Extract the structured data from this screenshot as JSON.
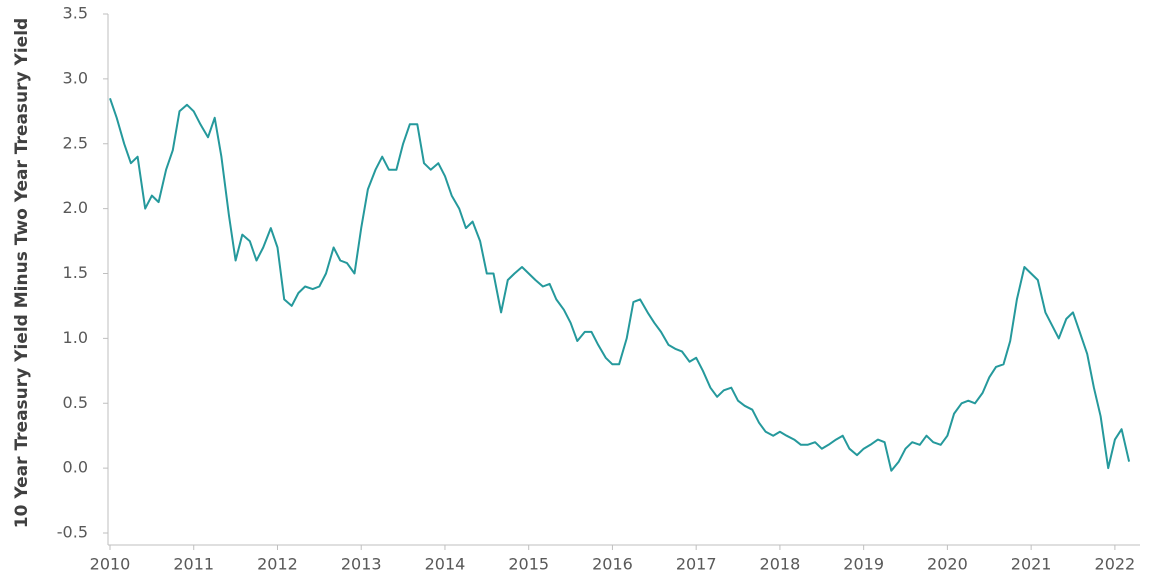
{
  "chart_data": {
    "type": "line",
    "y_label": "10 Year Treasury Yield Minus Two Year Treasury Yield",
    "xlim": [
      2010,
      2022.3
    ],
    "xticks": [
      2010,
      2011,
      2012,
      2013,
      2014,
      2015,
      2016,
      2017,
      2018,
      2019,
      2020,
      2021,
      2022
    ],
    "ylim": [
      -0.5,
      3.5
    ],
    "yticks": [
      {
        "value": -0.5,
        "label": "-0.5"
      },
      {
        "value": 0,
        "label": "0.0"
      },
      0.5,
      {
        "value": 1,
        "label": "1.0"
      },
      1.5,
      {
        "value": 2,
        "label": "2.0"
      },
      2.5,
      {
        "value": 3,
        "label": "3.0"
      },
      3.5
    ],
    "grid": false,
    "series": [
      {
        "color": "#25999c",
        "x": [
          2010.0,
          2010.08,
          2010.17,
          2010.25,
          2010.33,
          2010.42,
          2010.5,
          2010.58,
          2010.67,
          2010.75,
          2010.83,
          2010.92,
          2011.0,
          2011.08,
          2011.17,
          2011.25,
          2011.33,
          2011.42,
          2011.5,
          2011.58,
          2011.67,
          2011.75,
          2011.83,
          2011.92,
          2012.0,
          2012.08,
          2012.17,
          2012.25,
          2012.33,
          2012.42,
          2012.5,
          2012.58,
          2012.67,
          2012.75,
          2012.83,
          2012.92,
          2013.0,
          2013.08,
          2013.17,
          2013.25,
          2013.33,
          2013.42,
          2013.5,
          2013.58,
          2013.67,
          2013.75,
          2013.83,
          2013.92,
          2014.0,
          2014.08,
          2014.17,
          2014.25,
          2014.33,
          2014.42,
          2014.5,
          2014.58,
          2014.67,
          2014.75,
          2014.83,
          2014.92,
          2015.0,
          2015.08,
          2015.17,
          2015.25,
          2015.33,
          2015.42,
          2015.5,
          2015.58,
          2015.67,
          2015.75,
          2015.83,
          2015.92,
          2016.0,
          2016.08,
          2016.17,
          2016.25,
          2016.33,
          2016.42,
          2016.5,
          2016.58,
          2016.67,
          2016.75,
          2016.83,
          2016.92,
          2017.0,
          2017.08,
          2017.17,
          2017.25,
          2017.33,
          2017.42,
          2017.5,
          2017.58,
          2017.67,
          2017.75,
          2017.83,
          2017.92,
          2018.0,
          2018.08,
          2018.17,
          2018.25,
          2018.33,
          2018.42,
          2018.5,
          2018.58,
          2018.67,
          2018.75,
          2018.83,
          2018.92,
          2019.0,
          2019.08,
          2019.17,
          2019.25,
          2019.33,
          2019.42,
          2019.5,
          2019.58,
          2019.67,
          2019.75,
          2019.83,
          2019.92,
          2020.0,
          2020.08,
          2020.17,
          2020.25,
          2020.33,
          2020.42,
          2020.5,
          2020.58,
          2020.67,
          2020.75,
          2020.83,
          2020.92,
          2021.0,
          2021.08,
          2021.17,
          2021.25,
          2021.33,
          2021.42,
          2021.5,
          2021.58,
          2021.67,
          2021.75,
          2021.83,
          2021.92,
          2022.0,
          2022.08,
          2022.17
        ],
        "values": [
          2.85,
          2.7,
          2.5,
          2.35,
          2.4,
          2.0,
          2.1,
          2.05,
          2.3,
          2.45,
          2.75,
          2.8,
          2.75,
          2.65,
          2.55,
          2.7,
          2.4,
          1.95,
          1.6,
          1.8,
          1.75,
          1.6,
          1.7,
          1.85,
          1.7,
          1.3,
          1.25,
          1.35,
          1.4,
          1.38,
          1.4,
          1.5,
          1.7,
          1.6,
          1.58,
          1.5,
          1.85,
          2.15,
          2.3,
          2.4,
          2.3,
          2.3,
          2.5,
          2.65,
          2.65,
          2.35,
          2.3,
          2.35,
          2.25,
          2.1,
          2.0,
          1.85,
          1.9,
          1.75,
          1.5,
          1.5,
          1.2,
          1.45,
          1.5,
          1.55,
          1.5,
          1.45,
          1.4,
          1.42,
          1.3,
          1.22,
          1.12,
          0.98,
          1.05,
          1.05,
          0.95,
          0.85,
          0.8,
          0.8,
          1.0,
          1.28,
          1.3,
          1.2,
          1.12,
          1.05,
          0.95,
          0.92,
          0.9,
          0.82,
          0.85,
          0.75,
          0.62,
          0.55,
          0.6,
          0.62,
          0.52,
          0.48,
          0.45,
          0.35,
          0.28,
          0.25,
          0.28,
          0.25,
          0.22,
          0.18,
          0.18,
          0.2,
          0.15,
          0.18,
          0.22,
          0.25,
          0.15,
          0.1,
          0.15,
          0.18,
          0.22,
          0.2,
          -0.02,
          0.05,
          0.15,
          0.2,
          0.18,
          0.25,
          0.2,
          0.18,
          0.25,
          0.42,
          0.5,
          0.52,
          0.5,
          0.58,
          0.7,
          0.78,
          0.8,
          0.98,
          1.3,
          1.55,
          1.5,
          1.45,
          1.2,
          1.1,
          1.0,
          1.15,
          1.2,
          1.05,
          0.88,
          0.62,
          0.4,
          0.0,
          0.22,
          0.3,
          0.05
        ]
      }
    ]
  }
}
